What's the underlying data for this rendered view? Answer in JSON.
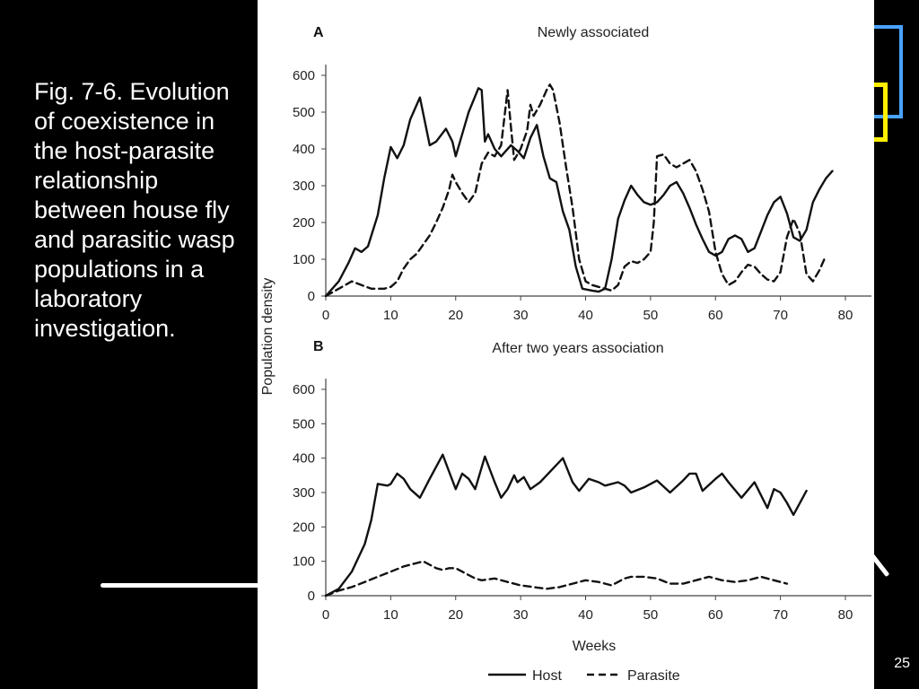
{
  "slide": {
    "caption": "Fig. 7-6. Evolution of coexistence in the host-parasite relationship between house fly and parasitic wasp populations in a laboratory investigation.",
    "slide_number": "25"
  },
  "chart_data": [
    {
      "type": "line",
      "panel_label": "A",
      "title": "Newly associated",
      "xlabel": "",
      "ylabel": "",
      "xlim": [
        0,
        80
      ],
      "ylim": [
        0,
        600
      ],
      "xticks": [
        0,
        10,
        20,
        30,
        40,
        50,
        60,
        70,
        80
      ],
      "yticks": [
        0,
        100,
        200,
        300,
        400,
        500,
        600
      ],
      "series": [
        {
          "name": "Host",
          "style": "solid",
          "points": [
            [
              0,
              0
            ],
            [
              2,
              40
            ],
            [
              3.5,
              90
            ],
            [
              4.5,
              130
            ],
            [
              5.5,
              120
            ],
            [
              6.5,
              135
            ],
            [
              8,
              220
            ],
            [
              9,
              320
            ],
            [
              10,
              405
            ],
            [
              11,
              375
            ],
            [
              12,
              410
            ],
            [
              13,
              480
            ],
            [
              14.5,
              540
            ],
            [
              16,
              410
            ],
            [
              17,
              420
            ],
            [
              18.5,
              455
            ],
            [
              19.5,
              420
            ],
            [
              20,
              380
            ],
            [
              21,
              440
            ],
            [
              22,
              500
            ],
            [
              23.5,
              565
            ],
            [
              24,
              560
            ],
            [
              24.5,
              420
            ],
            [
              25,
              440
            ],
            [
              26,
              400
            ],
            [
              27,
              380
            ],
            [
              28.5,
              410
            ],
            [
              29.5,
              395
            ],
            [
              30.5,
              375
            ],
            [
              31.5,
              430
            ],
            [
              32.5,
              465
            ],
            [
              33.5,
              380
            ],
            [
              34.5,
              320
            ],
            [
              35.5,
              310
            ],
            [
              36.5,
              230
            ],
            [
              37.5,
              180
            ],
            [
              38.5,
              80
            ],
            [
              39.5,
              20
            ],
            [
              41,
              15
            ],
            [
              42,
              12
            ],
            [
              43,
              20
            ],
            [
              44,
              100
            ],
            [
              45,
              210
            ],
            [
              46,
              260
            ],
            [
              47,
              300
            ],
            [
              48,
              275
            ],
            [
              49,
              255
            ],
            [
              50,
              248
            ],
            [
              51,
              255
            ],
            [
              52,
              275
            ],
            [
              53,
              300
            ],
            [
              54,
              310
            ],
            [
              55,
              280
            ],
            [
              56,
              240
            ],
            [
              57,
              195
            ],
            [
              58,
              155
            ],
            [
              59,
              120
            ],
            [
              60,
              110
            ],
            [
              61,
              120
            ],
            [
              62,
              155
            ],
            [
              63,
              165
            ],
            [
              64,
              155
            ],
            [
              65,
              120
            ],
            [
              66,
              130
            ],
            [
              67,
              175
            ],
            [
              68,
              220
            ],
            [
              69,
              255
            ],
            [
              70,
              270
            ],
            [
              71,
              225
            ],
            [
              72,
              160
            ],
            [
              73,
              150
            ],
            [
              74,
              180
            ],
            [
              75,
              255
            ],
            [
              76,
              290
            ],
            [
              77,
              320
            ],
            [
              78,
              340
            ]
          ]
        },
        {
          "name": "Parasite",
          "style": "dashed",
          "points": [
            [
              0,
              0
            ],
            [
              2,
              20
            ],
            [
              4,
              40
            ],
            [
              5.5,
              30
            ],
            [
              7,
              20
            ],
            [
              9,
              20
            ],
            [
              10,
              25
            ],
            [
              11,
              40
            ],
            [
              12,
              75
            ],
            [
              13,
              100
            ],
            [
              14,
              115
            ],
            [
              15,
              140
            ],
            [
              16,
              165
            ],
            [
              17,
              200
            ],
            [
              18,
              240
            ],
            [
              19,
              290
            ],
            [
              19.5,
              330
            ],
            [
              20,
              310
            ],
            [
              21,
              280
            ],
            [
              22,
              255
            ],
            [
              23,
              280
            ],
            [
              24,
              360
            ],
            [
              25,
              390
            ],
            [
              26,
              380
            ],
            [
              27,
              410
            ],
            [
              28,
              560
            ],
            [
              28.5,
              460
            ],
            [
              29,
              370
            ],
            [
              30,
              400
            ],
            [
              31,
              450
            ],
            [
              31.5,
              520
            ],
            [
              32,
              490
            ],
            [
              33,
              520
            ],
            [
              34,
              560
            ],
            [
              34.5,
              575
            ],
            [
              35,
              560
            ],
            [
              36,
              470
            ],
            [
              37,
              350
            ],
            [
              38,
              240
            ],
            [
              39,
              100
            ],
            [
              40,
              40
            ],
            [
              41,
              30
            ],
            [
              42,
              25
            ],
            [
              43,
              20
            ],
            [
              44,
              15
            ],
            [
              45,
              30
            ],
            [
              46,
              80
            ],
            [
              47,
              95
            ],
            [
              48,
              90
            ],
            [
              49,
              100
            ],
            [
              50,
              120
            ],
            [
              50.5,
              200
            ],
            [
              51,
              380
            ],
            [
              52,
              385
            ],
            [
              53,
              360
            ],
            [
              54,
              350
            ],
            [
              55,
              360
            ],
            [
              56,
              370
            ],
            [
              57,
              340
            ],
            [
              58,
              290
            ],
            [
              59,
              230
            ],
            [
              60,
              120
            ],
            [
              61,
              60
            ],
            [
              62,
              30
            ],
            [
              63,
              40
            ],
            [
              64,
              65
            ],
            [
              65,
              85
            ],
            [
              66,
              80
            ],
            [
              67,
              60
            ],
            [
              68,
              45
            ],
            [
              69,
              40
            ],
            [
              70,
              65
            ],
            [
              71,
              160
            ],
            [
              72,
              210
            ],
            [
              73,
              170
            ],
            [
              74,
              60
            ],
            [
              75,
              40
            ],
            [
              76,
              70
            ],
            [
              77,
              110
            ]
          ]
        }
      ]
    },
    {
      "type": "line",
      "panel_label": "B",
      "title": "After two years association",
      "xlabel": "Weeks",
      "ylabel": "",
      "xlim": [
        0,
        80
      ],
      "ylim": [
        0,
        600
      ],
      "xticks": [
        0,
        10,
        20,
        30,
        40,
        50,
        60,
        70,
        80
      ],
      "yticks": [
        0,
        100,
        200,
        300,
        400,
        500,
        600
      ],
      "series": [
        {
          "name": "Host",
          "style": "solid",
          "points": [
            [
              0,
              0
            ],
            [
              2,
              20
            ],
            [
              4,
              70
            ],
            [
              6,
              150
            ],
            [
              7,
              220
            ],
            [
              8,
              325
            ],
            [
              9.5,
              320
            ],
            [
              10,
              325
            ],
            [
              11,
              355
            ],
            [
              12,
              340
            ],
            [
              13,
              310
            ],
            [
              14.5,
              285
            ],
            [
              16,
              340
            ],
            [
              18,
              410
            ],
            [
              19,
              360
            ],
            [
              20,
              310
            ],
            [
              21,
              355
            ],
            [
              22,
              340
            ],
            [
              23,
              310
            ],
            [
              24.5,
              405
            ],
            [
              26,
              330
            ],
            [
              27,
              285
            ],
            [
              28,
              310
            ],
            [
              29,
              350
            ],
            [
              29.5,
              330
            ],
            [
              30.5,
              345
            ],
            [
              31.5,
              310
            ],
            [
              33,
              330
            ],
            [
              35,
              370
            ],
            [
              36.5,
              400
            ],
            [
              38,
              330
            ],
            [
              39,
              305
            ],
            [
              40.5,
              340
            ],
            [
              42,
              330
            ],
            [
              43,
              320
            ],
            [
              45,
              330
            ],
            [
              46,
              320
            ],
            [
              47,
              300
            ],
            [
              49,
              315
            ],
            [
              51,
              335
            ],
            [
              53,
              300
            ],
            [
              55,
              335
            ],
            [
              56,
              355
            ],
            [
              57,
              355
            ],
            [
              58,
              305
            ],
            [
              60,
              340
            ],
            [
              61,
              355
            ],
            [
              62,
              330
            ],
            [
              64,
              285
            ],
            [
              66,
              330
            ],
            [
              68,
              255
            ],
            [
              69,
              310
            ],
            [
              70,
              300
            ],
            [
              71,
              270
            ],
            [
              72,
              235
            ],
            [
              74,
              305
            ]
          ]
        },
        {
          "name": "Parasite",
          "style": "dashed",
          "points": [
            [
              0,
              0
            ],
            [
              2,
              15
            ],
            [
              4,
              25
            ],
            [
              6,
              40
            ],
            [
              8,
              55
            ],
            [
              10,
              70
            ],
            [
              12,
              85
            ],
            [
              14,
              95
            ],
            [
              15,
              100
            ],
            [
              16,
              90
            ],
            [
              17,
              80
            ],
            [
              18,
              75
            ],
            [
              19,
              80
            ],
            [
              20,
              80
            ],
            [
              21,
              70
            ],
            [
              22,
              60
            ],
            [
              23,
              50
            ],
            [
              24,
              45
            ],
            [
              26,
              50
            ],
            [
              28,
              40
            ],
            [
              30,
              30
            ],
            [
              32,
              25
            ],
            [
              34,
              20
            ],
            [
              36,
              25
            ],
            [
              38,
              35
            ],
            [
              40,
              45
            ],
            [
              42,
              40
            ],
            [
              44,
              30
            ],
            [
              46,
              50
            ],
            [
              47,
              55
            ],
            [
              49,
              55
            ],
            [
              51,
              50
            ],
            [
              53,
              35
            ],
            [
              55,
              35
            ],
            [
              57,
              45
            ],
            [
              59,
              55
            ],
            [
              61,
              45
            ],
            [
              63,
              40
            ],
            [
              65,
              45
            ],
            [
              67,
              55
            ],
            [
              69,
              45
            ],
            [
              71,
              35
            ]
          ]
        }
      ]
    }
  ],
  "figure_labels": {
    "shared_ylabel": "Population density"
  }
}
